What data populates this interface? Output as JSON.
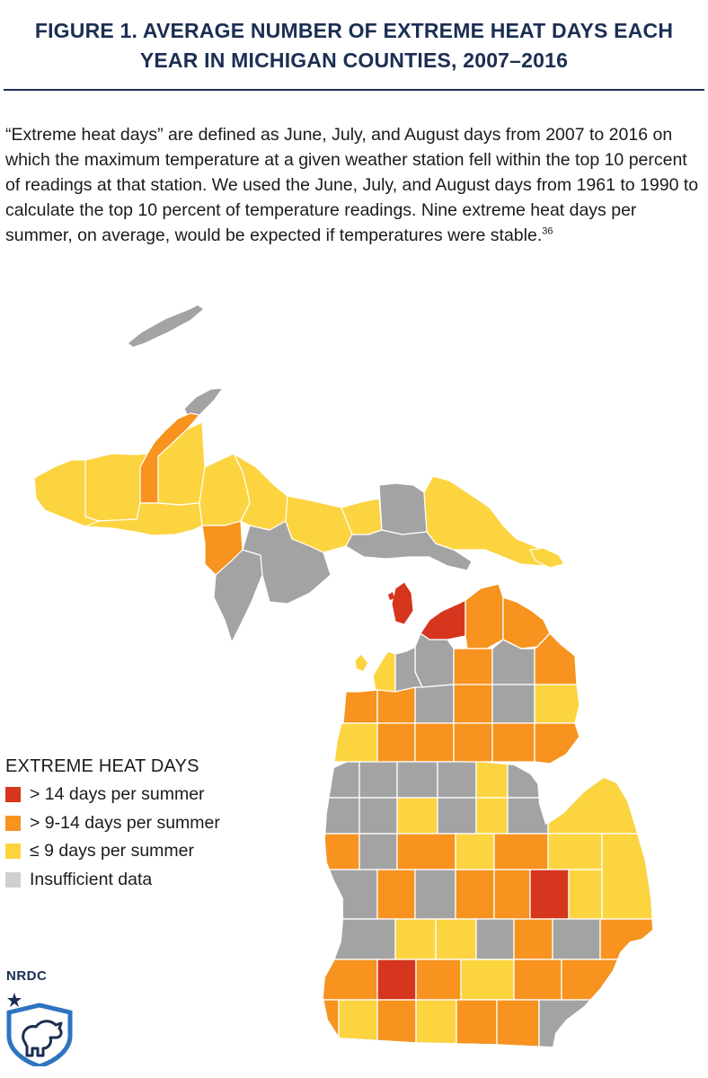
{
  "title": {
    "line1": "FIGURE 1. AVERAGE NUMBER OF EXTREME HEAT DAYS EACH",
    "line2": "YEAR IN MICHIGAN COUNTIES, 2007–2016"
  },
  "description": {
    "text": "“Extreme heat days” are defined as June, July, and August days from 2007 to 2016 on which the maximum temperature at a given weather station fell within the top 10 percent of readings at that station. We used the June, July, and August days from 1961 to 1990 to calculate the top 10 percent of temperature readings. Nine extreme heat days per summer, on average, would be expected if temperatures were stable.",
    "footnote": "36"
  },
  "legend": {
    "title": "EXTREME HEAT DAYS",
    "items": [
      {
        "label": "> 14 days per summer",
        "color": "#d5361d"
      },
      {
        "label": "> 9-14 days per summer",
        "color": "#f7931e"
      },
      {
        "label": "≤ 9 days per summer",
        "color": "#fcd440"
      },
      {
        "label": "Insufficient data",
        "color": "#a3a3a3"
      }
    ]
  },
  "colors": {
    "high": "#d5361d",
    "mid": "#f7931e",
    "low": "#fcd440",
    "nodata": "#a3a3a3",
    "border": "#ffffff",
    "title": "#1c2e52"
  },
  "logo": {
    "text": "NRDC",
    "icon": "bear-shield-icon"
  }
}
